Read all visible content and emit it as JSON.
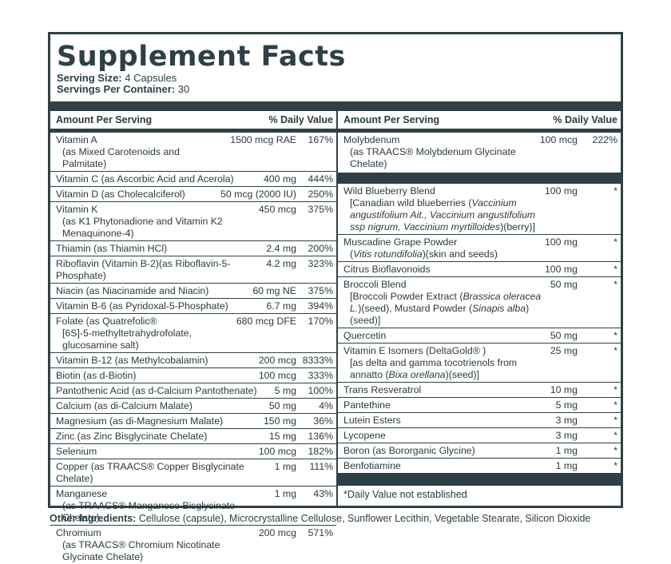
{
  "title": "Supplement Facts",
  "serving": {
    "size_label": "Serving Size:",
    "size_value": " 4 Capsules",
    "per_container_label": "Servings Per Container:",
    "per_container_value": " 30"
  },
  "columns": {
    "amount": "Amount Per Serving",
    "dv": "% Daily Value"
  },
  "left_rows": [
    {
      "name": "Vitamin A",
      "sub": "(as Mixed Carotenoids and Palmitate)",
      "amount": "1500 mcg RAE",
      "dv": "167%"
    },
    {
      "name": "Vitamin C (as Ascorbic Acid and Acerola)",
      "amount": "400 mg",
      "dv": "444%"
    },
    {
      "name": "Vitamin D (as Cholecalciferol)",
      "amount": "50 mcg (2000 IU)",
      "dv": "250%"
    },
    {
      "name": "Vitamin K",
      "sub": "(as K1 Phytonadione and Vitamin K2 Menaquinone-4)",
      "amount": "450 mcg",
      "dv": "375%"
    },
    {
      "name": "Thiamin (as Thiamin HCl)",
      "amount": "2.4 mg",
      "dv": "200%"
    },
    {
      "name": "Riboflavin (Vitamin B-2)(as Riboflavin-5-Phosphate)",
      "amount": "4.2 mg",
      "dv": "323%"
    },
    {
      "name": "Niacin (as Niacinamide and Niacin)",
      "amount": "60 mg NE",
      "dv": "375%"
    },
    {
      "name": "Vitamin B-6 (as Pyridoxal-5-Phosphate)",
      "amount": "6.7 mg",
      "dv": "394%"
    },
    {
      "name": "Folate (as Quatrefolic®",
      "sub": "[6S]-5-methyltetrahydrofolate, glucosamine salt)",
      "amount": "680 mcg DFE",
      "dv": "170%"
    },
    {
      "name": "Vitamin B-12 (as Methylcobalamin)",
      "amount": "200 mcg",
      "dv": "8333%"
    },
    {
      "name": "Biotin (as d-Biotin)",
      "amount": "100 mcg",
      "dv": "333%"
    },
    {
      "name": "Pantothenic Acid (as d-Calcium Pantothenate)",
      "amount": "5 mg",
      "dv": "100%"
    },
    {
      "name": "Calcium (as di-Calcium Malate)",
      "amount": "50 mg",
      "dv": "4%"
    },
    {
      "name": "Magnesium (as di-Magnesium Malate)",
      "amount": "150 mg",
      "dv": "36%"
    },
    {
      "name": "Zinc (as Zinc Bisglycinate Chelate)",
      "amount": "15 mg",
      "dv": "136%"
    },
    {
      "name": "Selenium",
      "amount": "100 mcg",
      "dv": "182%"
    },
    {
      "name": "Copper (as TRAACS® Copper Bisglycinate Chelate)",
      "amount": "1 mg",
      "dv": "111%"
    },
    {
      "name": "Manganese",
      "sub": "(as TRAACS® Manganese Bisglycinate Chelate)",
      "amount": "1 mg",
      "dv": "43%"
    },
    {
      "name": "Chromium",
      "sub": "(as TRAACS® Chromium Nicotinate Glycinate Chelate)",
      "amount": "200 mcg",
      "dv": "571%"
    }
  ],
  "right_top": [
    {
      "name": "Molybdenum",
      "sub": "(as TRAACS® Molybdenum Glycinate Chelate)",
      "amount": "100 mcg",
      "dv": "222%"
    }
  ],
  "right_rows": [
    {
      "name": "Wild Blueberry Blend",
      "sub_html": "[Canadian wild blueberries (<i>Vaccinium angustifolium Ait., Vaccinium angustifolium ssp nigrum, Vaccinium myrtilloides</i>)(berry)]",
      "amount": "100 mg",
      "dv": "*"
    },
    {
      "name": "Muscadine Grape Powder",
      "sub_html": "(<i>Vitis rotundifolia</i>)(skin and seeds)",
      "amount": "100 mg",
      "dv": "*"
    },
    {
      "name": "Citrus Bioflavonoids",
      "amount": "100 mg",
      "dv": "*"
    },
    {
      "name": "Broccoli Blend",
      "sub_html": "[Broccoli Powder Extract (<i>Brassica oleracea L.</i>)(seed), Mustard Powder (<i>Sinapis alba</i>)(seed)]",
      "amount": "50 mg",
      "dv": "*"
    },
    {
      "name": "Quercetin",
      "amount": "50 mg",
      "dv": "*"
    },
    {
      "name": "Vitamin E Isomers (DeltaGold® )",
      "sub_html": "[as delta and gamma tocotrienols from annatto (<i>Bixa orellana</i>)(seed)]",
      "amount": "25 mg",
      "dv": "*"
    },
    {
      "name": "Trans Resveratrol",
      "amount": "10 mg",
      "dv": "*"
    },
    {
      "name": "Pantethine",
      "amount": "5 mg",
      "dv": "*"
    },
    {
      "name": "Lutein Esters",
      "amount": "3 mg",
      "dv": "*"
    },
    {
      "name": "Lycopene",
      "amount": "3 mg",
      "dv": "*"
    },
    {
      "name": "Boron (as Bororganic Glycine)",
      "amount": "1 mg",
      "dv": "*"
    },
    {
      "name": "Benfotiamine",
      "amount": "1 mg",
      "dv": "*"
    }
  ],
  "footnote": "*Daily Value not established",
  "other_ingredients": {
    "label": "Other Ingredients:",
    "value": " Cellulose (capsule), Microcrystalline Cellulose, Sunflower Lecithin, Vegetable Stearate, Silicon Dioxide"
  },
  "colors": {
    "primary": "#2f4045",
    "background": "#ffffff"
  }
}
